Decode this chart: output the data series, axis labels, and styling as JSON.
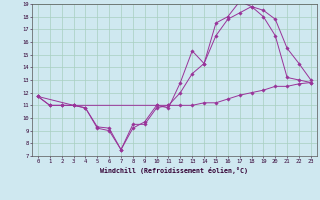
{
  "xlabel": "Windchill (Refroidissement éolien,°C)",
  "background_color": "#cfe8f0",
  "grid_color": "#a8cfc0",
  "line_color": "#993399",
  "xlim": [
    -0.5,
    23.5
  ],
  "ylim": [
    7,
    19
  ],
  "xticks": [
    0,
    1,
    2,
    3,
    4,
    5,
    6,
    7,
    8,
    9,
    10,
    11,
    12,
    13,
    14,
    15,
    16,
    17,
    18,
    19,
    20,
    21,
    22,
    23
  ],
  "yticks": [
    7,
    8,
    9,
    10,
    11,
    12,
    13,
    14,
    15,
    16,
    17,
    18,
    19
  ],
  "line1_x": [
    0,
    1,
    2,
    3,
    4,
    5,
    6,
    7,
    8,
    9,
    10,
    11,
    12,
    13,
    14,
    15,
    16,
    17,
    18,
    19,
    20,
    21,
    22,
    23
  ],
  "line1_y": [
    11.7,
    11.0,
    11.0,
    11.0,
    10.8,
    9.3,
    9.2,
    7.5,
    9.5,
    9.5,
    10.8,
    11.0,
    11.0,
    11.0,
    11.2,
    11.2,
    11.5,
    11.8,
    12.0,
    12.2,
    12.5,
    12.5,
    12.7,
    12.8
  ],
  "line2_x": [
    0,
    1,
    2,
    3,
    4,
    5,
    6,
    7,
    8,
    9,
    10,
    11,
    12,
    13,
    14,
    15,
    16,
    17,
    18,
    19,
    20,
    21,
    22,
    23
  ],
  "line2_y": [
    11.7,
    11.0,
    11.0,
    11.0,
    10.8,
    9.2,
    9.0,
    7.5,
    9.2,
    9.7,
    11.0,
    10.8,
    12.8,
    15.3,
    14.3,
    17.5,
    18.0,
    19.2,
    18.8,
    18.0,
    16.5,
    13.2,
    13.0,
    12.8
  ],
  "line3_x": [
    0,
    3,
    10,
    11,
    12,
    13,
    14,
    15,
    16,
    17,
    18,
    19,
    20,
    21,
    22,
    23
  ],
  "line3_y": [
    11.7,
    11.0,
    11.0,
    11.0,
    12.0,
    13.5,
    14.3,
    16.5,
    17.8,
    18.3,
    18.8,
    18.5,
    17.8,
    15.5,
    14.3,
    13.0
  ]
}
